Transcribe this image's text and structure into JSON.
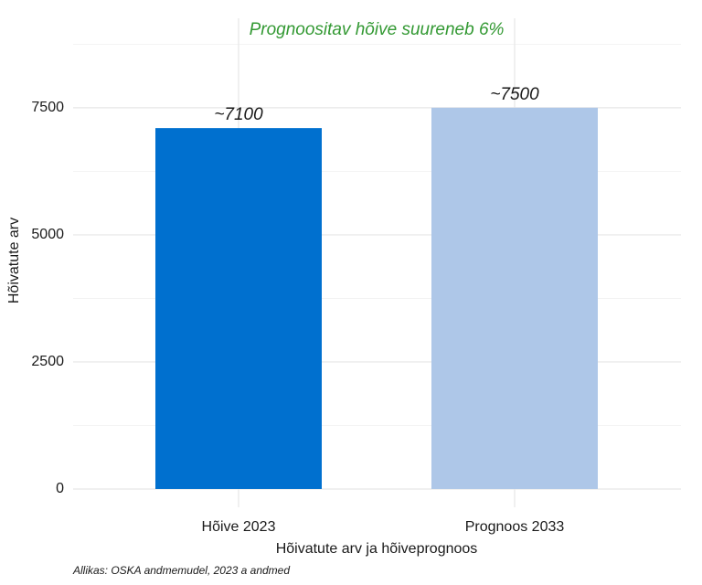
{
  "chart_data": {
    "type": "bar",
    "annotation": "Prognoositav hõive suureneb 6%",
    "annotation_color": "#339933",
    "x_label": "Hõivatute arv ja hõiveprognoos",
    "y_label": "Hõivatute arv",
    "caption": "Allikas: OSKA andmemudel, 2023 a andmed",
    "categories": [
      "Hõive 2023",
      "Prognoos 2033"
    ],
    "values": [
      7100,
      7500
    ],
    "value_labels": [
      "~7100",
      "~7500"
    ],
    "colors": [
      "#0070cf",
      "#aec7e8"
    ],
    "ylim": [
      -360,
      9260
    ],
    "yticks": [
      0,
      2500,
      5000,
      7500
    ],
    "grid": true
  }
}
